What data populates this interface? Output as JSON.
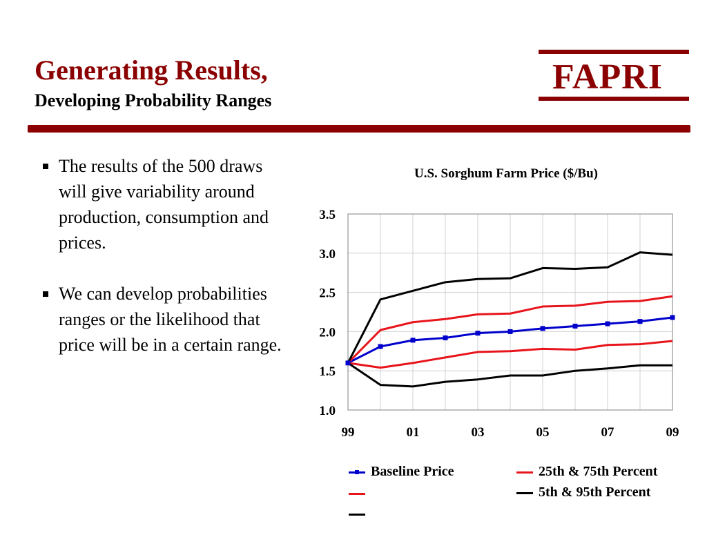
{
  "slide": {
    "title": "Generating Results,",
    "subtitle": "Developing Probability Ranges",
    "logo_text": "FAPRI",
    "accent_color": "#8b0000",
    "bullets": [
      "The results of the 500 draws will give variability around production, consumption and prices.",
      "We can develop probabilities ranges or the likelihood that price will be in a certain range."
    ]
  },
  "chart_data": {
    "type": "line",
    "title": "U.S. Sorghum Farm Price ($/Bu)",
    "xlabel": "",
    "ylabel": "",
    "x": [
      "99",
      "00",
      "01",
      "02",
      "03",
      "04",
      "05",
      "06",
      "07",
      "08",
      "09"
    ],
    "x_tick_labels": [
      "99",
      "01",
      "03",
      "05",
      "07",
      "09"
    ],
    "ylim": [
      1.0,
      3.5
    ],
    "y_ticks": [
      "1.0",
      "1.5",
      "2.0",
      "2.5",
      "3.0",
      "3.5"
    ],
    "grid": true,
    "legend_position": "bottom",
    "series": [
      {
        "name": "Baseline Price",
        "color": "#0000cc",
        "markers": true,
        "values": [
          1.6,
          1.81,
          1.89,
          1.92,
          1.98,
          2.0,
          2.04,
          2.07,
          2.1,
          2.13,
          2.18
        ]
      },
      {
        "name": "25th & 75th Percent",
        "color": "#e8141c",
        "markers": false,
        "values": [
          1.6,
          2.02,
          2.12,
          2.16,
          2.22,
          2.23,
          2.32,
          2.33,
          2.38,
          2.39,
          2.45
        ]
      },
      {
        "name": "",
        "color": "#e8141c",
        "markers": false,
        "values": [
          1.6,
          1.54,
          1.6,
          1.67,
          1.74,
          1.75,
          1.78,
          1.77,
          1.83,
          1.84,
          1.88
        ]
      },
      {
        "name": "5th & 95th Percent",
        "color": "#000000",
        "markers": false,
        "values": [
          1.6,
          2.41,
          2.52,
          2.63,
          2.67,
          2.68,
          2.81,
          2.8,
          2.82,
          3.01,
          2.98
        ]
      },
      {
        "name": "",
        "color": "#000000",
        "markers": false,
        "values": [
          1.6,
          1.32,
          1.3,
          1.36,
          1.39,
          1.44,
          1.44,
          1.5,
          1.53,
          1.57,
          1.57
        ]
      }
    ]
  }
}
